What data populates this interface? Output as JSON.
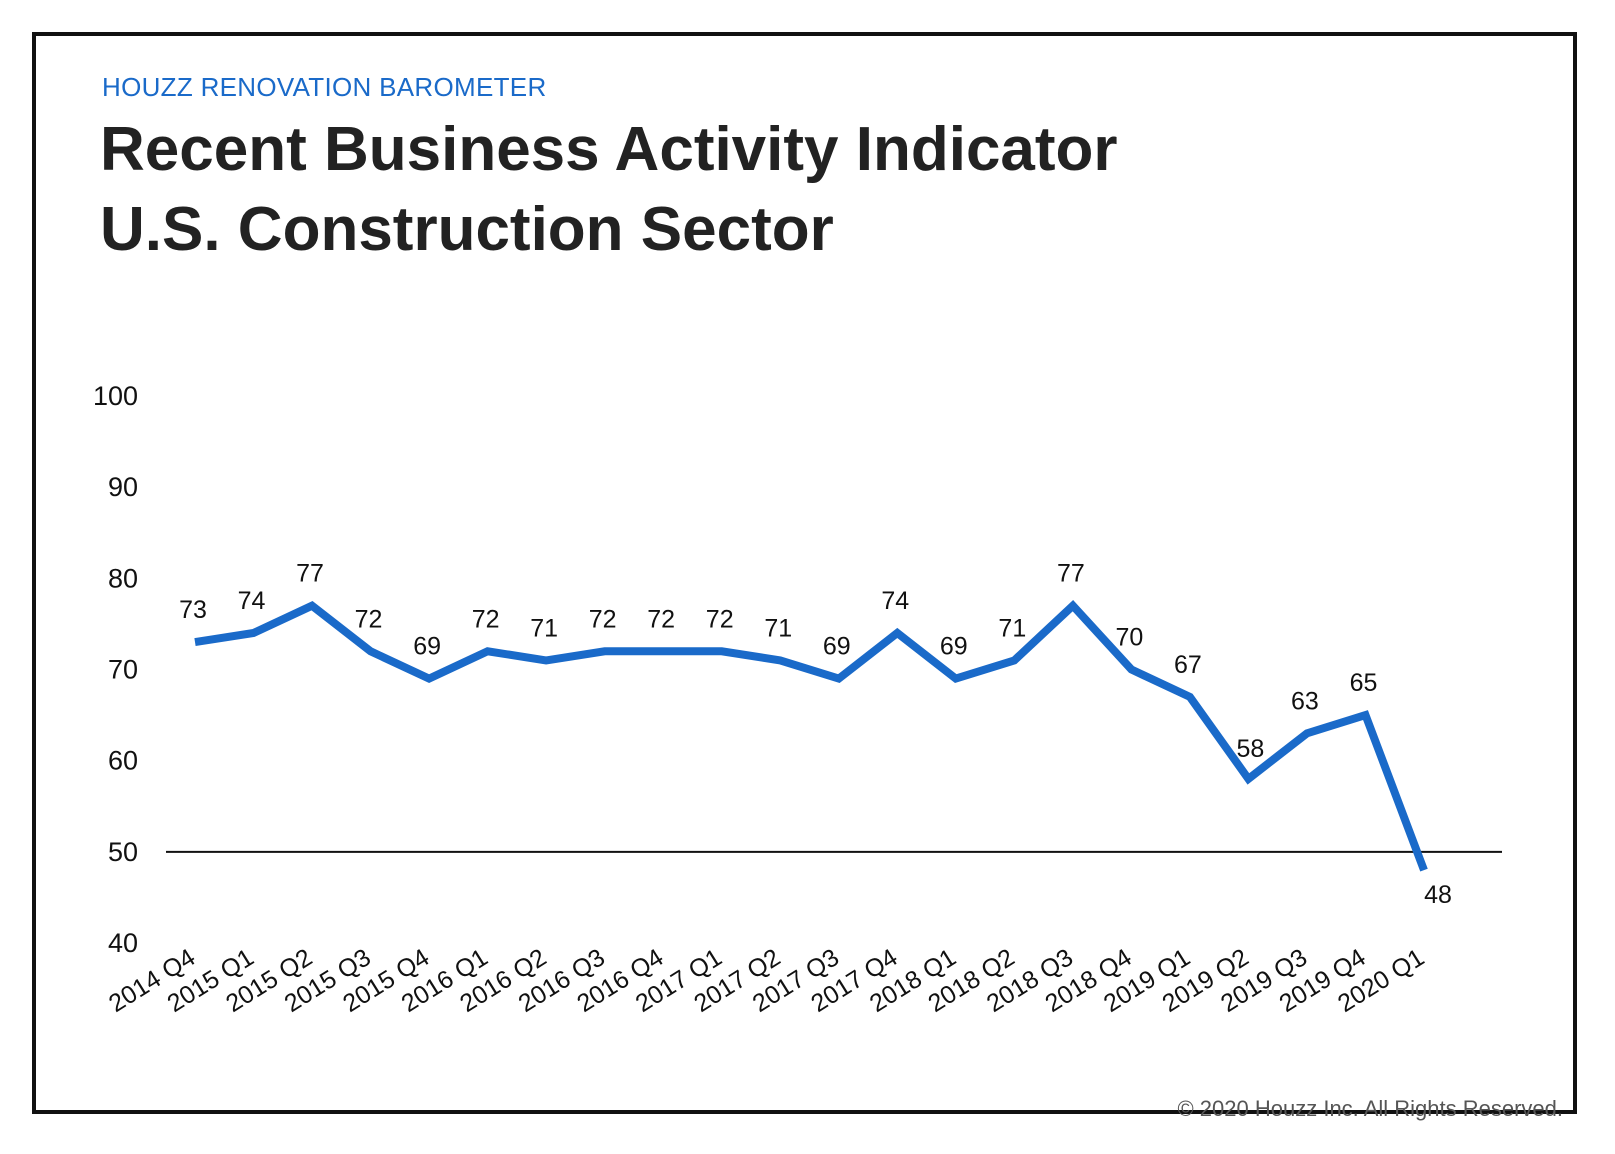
{
  "header": {
    "kicker": "HOUZZ RENOVATION BAROMETER",
    "title_line1": "Recent Business Activity Indicator",
    "title_line2": "U.S. Construction Sector"
  },
  "footer": {
    "copyright": "© 2020 Houzz Inc. All Rights Reserved."
  },
  "colors": {
    "line": "#1a6ac9",
    "kicker": "#1a6ac9",
    "reference_line": "#111111",
    "text": "#111111"
  },
  "chart_data": {
    "type": "line",
    "title": "Recent Business Activity Indicator U.S. Construction Sector",
    "xlabel": "",
    "ylabel": "",
    "ylim": [
      40,
      100
    ],
    "yticks": [
      100,
      90,
      80,
      70,
      60,
      50,
      40
    ],
    "reference_line": 50,
    "grid": false,
    "categories": [
      "2014 Q4",
      "2015 Q1",
      "2015 Q2",
      "2015 Q3",
      "2015 Q4",
      "2016 Q1",
      "2016 Q2",
      "2016 Q3",
      "2016 Q4",
      "2017 Q1",
      "2017 Q2",
      "2017 Q3",
      "2017 Q4",
      "2018 Q1",
      "2018 Q2",
      "2018 Q3",
      "2018 Q4",
      "2019 Q1",
      "2019 Q2",
      "2019 Q3",
      "2019 Q4",
      "2020 Q1"
    ],
    "series": [
      {
        "name": "Recent Business Activity Indicator",
        "values": [
          73,
          74,
          77,
          72,
          69,
          72,
          71,
          72,
          72,
          72,
          71,
          69,
          74,
          69,
          71,
          77,
          70,
          67,
          58,
          63,
          65,
          48
        ]
      }
    ]
  }
}
